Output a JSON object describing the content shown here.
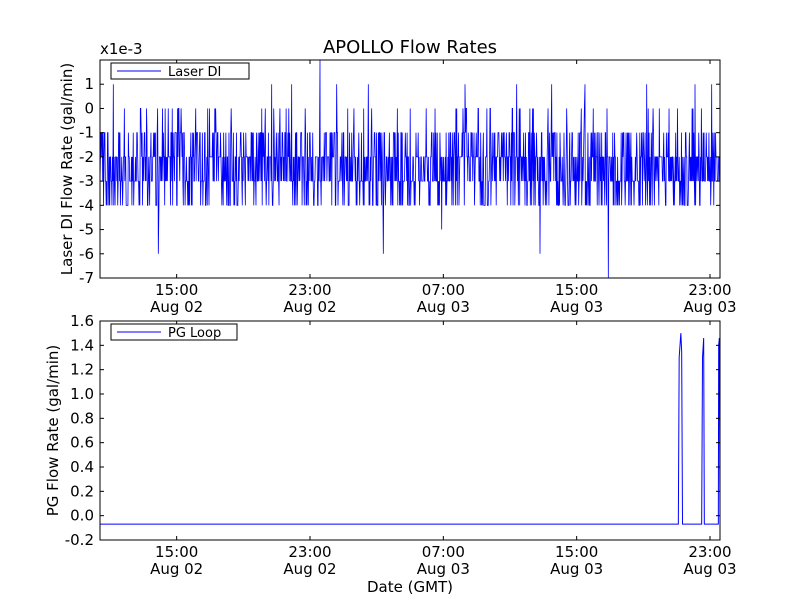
{
  "title": "APOLLO Flow Rates",
  "colors": {
    "series": "#0000ff",
    "axes": "#000000",
    "background": "#ffffff"
  },
  "chart_data": [
    {
      "type": "line",
      "name": "top",
      "ylabel": "Laser DI Flow Rate (gal/min)",
      "xlabel": "",
      "multiplier_label": "x1e-3",
      "legend": {
        "label": "Laser DI",
        "placement": "top-left"
      },
      "ylim": [
        -7,
        2
      ],
      "yticks": [
        -7,
        -6,
        -5,
        -4,
        -3,
        -2,
        -1,
        0,
        1
      ],
      "ytick_labels": [
        "-7",
        "-6",
        "-5",
        "-4",
        "-3",
        "-2",
        "-1",
        "0",
        "1"
      ],
      "xlim_hours": [
        10.4,
        47.6
      ],
      "xticks_hours": [
        15,
        23,
        31,
        39,
        47
      ],
      "xtick_labels": [
        [
          "15:00",
          "Aug 02"
        ],
        [
          "23:00",
          "Aug 02"
        ],
        [
          "07:00",
          "Aug 03"
        ],
        [
          "15:00",
          "Aug 03"
        ],
        [
          "23:00",
          "Aug 03"
        ]
      ],
      "series": [
        {
          "name": "Laser DI",
          "x_hours_start": 10.4,
          "x_hours_end": 47.6,
          "baseline_band": [
            -3,
            -1
          ],
          "typical_range": [
            -4,
            0
          ],
          "spikes": [
            {
              "x_hours": 11.2,
              "value": 1
            },
            {
              "x_hours": 13.9,
              "value": -6
            },
            {
              "x_hours": 20.7,
              "value": 1
            },
            {
              "x_hours": 21.9,
              "value": 1
            },
            {
              "x_hours": 23.6,
              "value": 2
            },
            {
              "x_hours": 24.6,
              "value": 1
            },
            {
              "x_hours": 26.5,
              "value": 1
            },
            {
              "x_hours": 27.4,
              "value": -6
            },
            {
              "x_hours": 30.9,
              "value": -5
            },
            {
              "x_hours": 32.3,
              "value": 1
            },
            {
              "x_hours": 35.4,
              "value": 1
            },
            {
              "x_hours": 36.8,
              "value": -6
            },
            {
              "x_hours": 37.5,
              "value": 1
            },
            {
              "x_hours": 39.5,
              "value": 1
            },
            {
              "x_hours": 40.9,
              "value": -7
            },
            {
              "x_hours": 43.2,
              "value": 1
            },
            {
              "x_hours": 46.1,
              "value": 1
            },
            {
              "x_hours": 47.1,
              "value": 1
            }
          ]
        }
      ]
    },
    {
      "type": "line",
      "name": "bottom",
      "ylabel": "PG Flow Rate (gal/min)",
      "xlabel": "Date (GMT)",
      "legend": {
        "label": "PG Loop",
        "placement": "top-left"
      },
      "ylim": [
        -0.2,
        1.6
      ],
      "yticks": [
        -0.2,
        0.0,
        0.2,
        0.4,
        0.6,
        0.8,
        1.0,
        1.2,
        1.4,
        1.6
      ],
      "ytick_labels": [
        "-0.2",
        "0.0",
        "0.2",
        "0.4",
        "0.6",
        "0.8",
        "1.0",
        "1.2",
        "1.4",
        "1.6"
      ],
      "xlim_hours": [
        10.4,
        47.6
      ],
      "xticks_hours": [
        15,
        23,
        31,
        39,
        47
      ],
      "xtick_labels": [
        [
          "15:00",
          "Aug 02"
        ],
        [
          "23:00",
          "Aug 02"
        ],
        [
          "07:00",
          "Aug 03"
        ],
        [
          "15:00",
          "Aug 03"
        ],
        [
          "23:00",
          "Aug 03"
        ]
      ],
      "series": [
        {
          "name": "PG Loop",
          "baseline": -0.07,
          "points": [
            {
              "x_hours": 10.4,
              "value": -0.07
            },
            {
              "x_hours": 45.1,
              "value": -0.07
            },
            {
              "x_hours": 45.15,
              "value": 1.3
            },
            {
              "x_hours": 45.25,
              "value": 1.5
            },
            {
              "x_hours": 45.3,
              "value": 1.35
            },
            {
              "x_hours": 45.35,
              "value": -0.07
            },
            {
              "x_hours": 46.5,
              "value": -0.07
            },
            {
              "x_hours": 46.55,
              "value": 1.3
            },
            {
              "x_hours": 46.62,
              "value": 1.46
            },
            {
              "x_hours": 46.66,
              "value": -0.07
            },
            {
              "x_hours": 47.5,
              "value": -0.07
            },
            {
              "x_hours": 47.52,
              "value": 1.4
            },
            {
              "x_hours": 47.56,
              "value": 1.46
            },
            {
              "x_hours": 47.6,
              "value": -0.07
            }
          ]
        }
      ]
    }
  ]
}
